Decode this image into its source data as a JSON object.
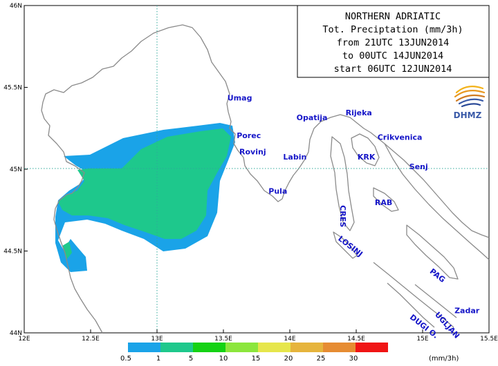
{
  "title_lines": [
    "NORTHERN ADRIATIC",
    "Tot. Preciptation (mm/3h)",
    "from 21UTC 13JUN2014",
    "to 00UTC 14JUN2014",
    "start 06UTC 12JUN2014"
  ],
  "logo": {
    "text": "DHMZ",
    "icon": "dhmz-swirl-logo"
  },
  "axes": {
    "x_ticks": [
      "12E",
      "12.5E",
      "13E",
      "13.5E",
      "14E",
      "14.5E",
      "15E",
      "15.5E"
    ],
    "y_ticks": [
      "46N",
      "45.5N",
      "45N",
      "44.5N",
      "44N"
    ],
    "x_range": [
      12,
      15.5
    ],
    "y_range": [
      44,
      46
    ]
  },
  "gridlines": [
    "45N",
    "13E"
  ],
  "places": [
    {
      "name": "Umag",
      "lon": 13.53,
      "lat": 45.42
    },
    {
      "name": "Porec",
      "lon": 13.6,
      "lat": 45.19
    },
    {
      "name": "Rovinj",
      "lon": 13.62,
      "lat": 45.09
    },
    {
      "name": "Pula",
      "lon": 13.84,
      "lat": 44.85
    },
    {
      "name": "Labin",
      "lon": 13.95,
      "lat": 45.06
    },
    {
      "name": "Opatija",
      "lon": 14.05,
      "lat": 45.3
    },
    {
      "name": "Rijeka",
      "lon": 14.42,
      "lat": 45.33
    },
    {
      "name": "Crikvenica",
      "lon": 14.66,
      "lat": 45.18
    },
    {
      "name": "KRK",
      "lon": 14.51,
      "lat": 45.06
    },
    {
      "name": "Senj",
      "lon": 14.9,
      "lat": 45.0
    },
    {
      "name": "RAB",
      "lon": 14.64,
      "lat": 44.78
    }
  ],
  "rotated_places": [
    {
      "name": "CRES",
      "lon": 14.38,
      "lat": 44.78,
      "rotate": 90
    },
    {
      "name": "LOSINJ",
      "lon": 14.36,
      "lat": 44.57,
      "rotate": 38
    },
    {
      "name": "PAG",
      "lon": 15.05,
      "lat": 44.37,
      "rotate": 38
    },
    {
      "name": "UGLJAN",
      "lon": 15.09,
      "lat": 44.11,
      "rotate": 48
    },
    {
      "name": "DUGI O.",
      "lon": 14.9,
      "lat": 44.09,
      "rotate": 38
    },
    {
      "name": "Zadar",
      "lon": 15.24,
      "lat": 44.12,
      "rotate": 0
    }
  ],
  "legend": {
    "ticks": [
      "0.5",
      "1",
      "5",
      "10",
      "15",
      "20",
      "25",
      "30"
    ],
    "unit": "(mm/3h)",
    "colors": [
      "#1aa3e8",
      "#1ec88c",
      "#14d214",
      "#8ce63c",
      "#e6e64b",
      "#e6b43c",
      "#e68c32",
      "#f01414"
    ]
  }
}
